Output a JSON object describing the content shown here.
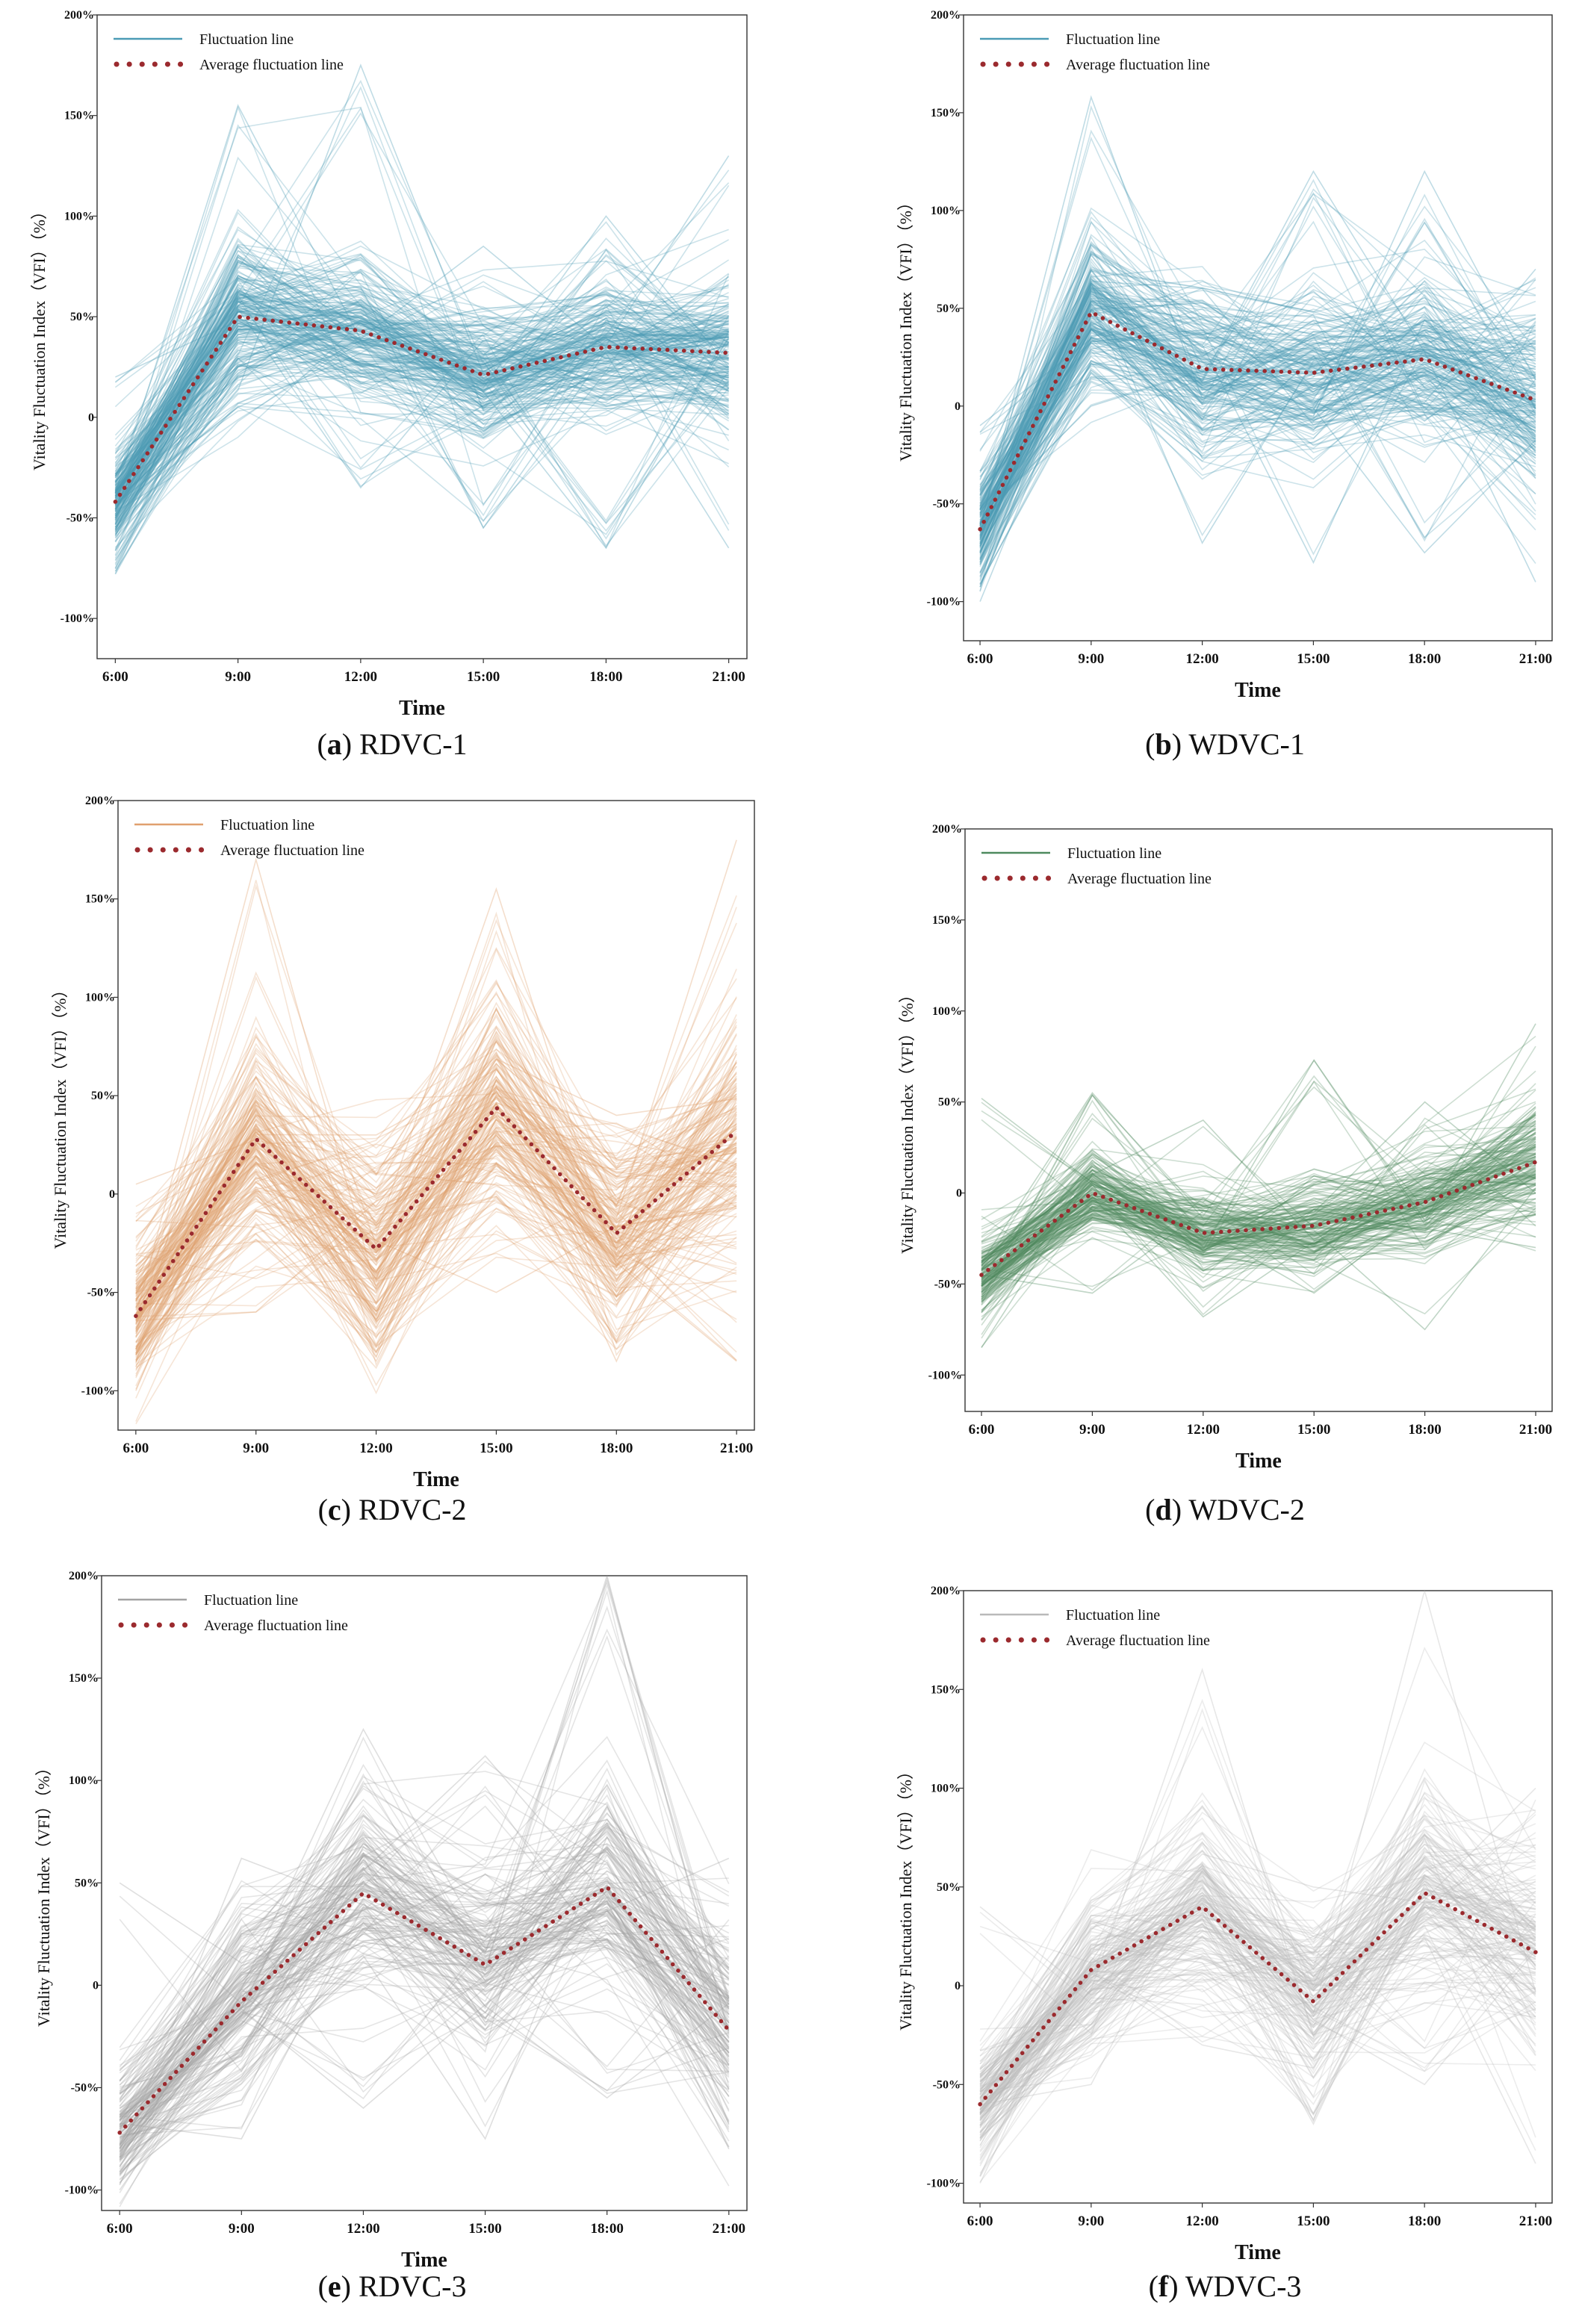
{
  "chart_data": [
    {
      "id": "a",
      "type": "line",
      "caption_letter": "a",
      "caption_name": "RDVC-1",
      "xlabel": "Time",
      "ylabel": "Vitality Fluctuation Index（VFI）（%）",
      "categories": [
        "6:00",
        "9:00",
        "12:00",
        "15:00",
        "18:00",
        "21:00"
      ],
      "yticks": [
        {
          "v": 200,
          "label": "200%"
        },
        {
          "v": 150,
          "label": "150%"
        },
        {
          "v": 100,
          "label": "100%"
        },
        {
          "v": 50,
          "label": "50%"
        },
        {
          "v": 0,
          "label": "0"
        },
        {
          "v": -50,
          "label": "-50%"
        },
        {
          "v": -100,
          "label": "-100%"
        }
      ],
      "ylim": [
        -120,
        200
      ],
      "legend": {
        "series_label": "Fluctuation    line",
        "average_label": "Average fluctuation line"
      },
      "series_color": "#4a9bb5",
      "average_color": "#9b2a2e",
      "average": [
        -42,
        50,
        43,
        21,
        35,
        32
      ],
      "spread": [
        13,
        22,
        20,
        18,
        18,
        20
      ],
      "outlier_max": [
        20,
        155,
        175,
        85,
        100,
        130
      ],
      "outlier_min": [
        -78,
        5,
        -35,
        -55,
        -65,
        -65
      ],
      "line_count": 220
    },
    {
      "id": "b",
      "type": "line",
      "caption_letter": "b",
      "caption_name": "WDVC-1",
      "xlabel": "Time",
      "ylabel": "Vitality Fluctuation Index（VFI）（%）",
      "categories": [
        "6:00",
        "9:00",
        "12:00",
        "15:00",
        "18:00",
        "21:00"
      ],
      "yticks": [
        {
          "v": 200,
          "label": "200%"
        },
        {
          "v": 150,
          "label": "150%"
        },
        {
          "v": 100,
          "label": "100%"
        },
        {
          "v": 50,
          "label": "50%"
        },
        {
          "v": 0,
          "label": "0"
        },
        {
          "v": -50,
          "label": "-50%"
        },
        {
          "v": -100,
          "label": "-100%"
        }
      ],
      "ylim": [
        -120,
        200
      ],
      "legend": {
        "series_label": "Fluctuation    line",
        "average_label": "Average fluctuation line"
      },
      "series_color": "#4a9bb5",
      "average_color": "#9b2a2e",
      "average": [
        -63,
        48,
        19,
        17,
        24,
        3
      ],
      "spread": [
        14,
        22,
        22,
        22,
        22,
        24
      ],
      "outlier_max": [
        -10,
        158,
        60,
        120,
        120,
        70
      ],
      "outlier_min": [
        -100,
        0,
        -70,
        -80,
        -75,
        -90
      ],
      "line_count": 200
    },
    {
      "id": "c",
      "type": "line",
      "caption_letter": "c",
      "caption_name": "RDVC-2",
      "xlabel": "Time",
      "ylabel": "Vitality Fluctuation Index（VFI）（%）",
      "categories": [
        "6:00",
        "9:00",
        "12:00",
        "15:00",
        "18:00",
        "21:00"
      ],
      "yticks": [
        {
          "v": 200,
          "label": "200%"
        },
        {
          "v": 150,
          "label": "150%"
        },
        {
          "v": 100,
          "label": "100%"
        },
        {
          "v": 50,
          "label": "50%"
        },
        {
          "v": 0,
          "label": "0"
        },
        {
          "v": -50,
          "label": "-50%"
        },
        {
          "v": -100,
          "label": "-100%"
        }
      ],
      "ylim": [
        -120,
        200
      ],
      "legend": {
        "series_label": "Fluctuation    line",
        "average_label": "Average fluctuation line"
      },
      "series_color": "#e0a06e",
      "average_color": "#9b2a2e",
      "average": [
        -62,
        28,
        -28,
        44,
        -20,
        32
      ],
      "spread": [
        20,
        32,
        28,
        30,
        25,
        35
      ],
      "outlier_max": [
        5,
        170,
        30,
        155,
        40,
        180
      ],
      "outlier_min": [
        -100,
        -60,
        -85,
        -50,
        -85,
        -85
      ],
      "line_count": 180
    },
    {
      "id": "d",
      "type": "line",
      "caption_letter": "d",
      "caption_name": "WDVC-2",
      "xlabel": "Time",
      "ylabel": "Vitality Fluctuation Index（VFI）（%）",
      "categories": [
        "6:00",
        "9:00",
        "12:00",
        "15:00",
        "18:00",
        "21:00"
      ],
      "yticks": [
        {
          "v": 200,
          "label": "200%"
        },
        {
          "v": 150,
          "label": "150%"
        },
        {
          "v": 100,
          "label": "100%"
        },
        {
          "v": 50,
          "label": "50%"
        },
        {
          "v": 0,
          "label": "0"
        },
        {
          "v": -50,
          "label": "-50%"
        },
        {
          "v": -100,
          "label": "-100%"
        }
      ],
      "ylim": [
        -120,
        200
      ],
      "legend": {
        "series_label": "Fluctuation    line",
        "average_label": "Average fluctuation line"
      },
      "series_color": "#4e8a5e",
      "average_color": "#9b2a2e",
      "average": [
        -45,
        0,
        -22,
        -18,
        -5,
        17
      ],
      "spread": [
        12,
        12,
        14,
        14,
        15,
        18
      ],
      "outlier_max": [
        52,
        55,
        40,
        73,
        50,
        93
      ],
      "outlier_min": [
        -85,
        -55,
        -68,
        -55,
        -75,
        -30
      ],
      "line_count": 170
    },
    {
      "id": "e",
      "type": "line",
      "caption_letter": "e",
      "caption_name": "RDVC-3",
      "xlabel": "Time",
      "ylabel": "Vitality Fluctuation Index（VFI）（%）",
      "categories": [
        "6:00",
        "9:00",
        "12:00",
        "15:00",
        "18:00",
        "21:00"
      ],
      "yticks": [
        {
          "v": 200,
          "label": "200%"
        },
        {
          "v": 150,
          "label": "150%"
        },
        {
          "v": 100,
          "label": "100%"
        },
        {
          "v": 50,
          "label": "50%"
        },
        {
          "v": 0,
          "label": "0"
        },
        {
          "v": -50,
          "label": "-50%"
        },
        {
          "v": -100,
          "label": "-100%"
        }
      ],
      "ylim": [
        -110,
        200
      ],
      "legend": {
        "series_label": "Fluctuation    line",
        "average_label": "Average fluctuation line"
      },
      "series_color": "#a3a3a3",
      "average_color": "#9b2a2e",
      "average": [
        -72,
        -8,
        45,
        10,
        48,
        -22
      ],
      "spread": [
        15,
        24,
        25,
        25,
        28,
        28
      ],
      "outlier_max": [
        50,
        62,
        125,
        112,
        200,
        62
      ],
      "outlier_min": [
        -100,
        -75,
        -60,
        -75,
        -55,
        -80
      ],
      "line_count": 160
    },
    {
      "id": "f",
      "type": "line",
      "caption_letter": "f",
      "caption_name": "WDVC-3",
      "xlabel": "Time",
      "ylabel": "Vitality Fluctuation Index（VFI）（%）",
      "categories": [
        "6:00",
        "9:00",
        "12:00",
        "15:00",
        "18:00",
        "21:00"
      ],
      "yticks": [
        {
          "v": 200,
          "label": "200%"
        },
        {
          "v": 150,
          "label": "150%"
        },
        {
          "v": 100,
          "label": "100%"
        },
        {
          "v": 50,
          "label": "50%"
        },
        {
          "v": 0,
          "label": "0"
        },
        {
          "v": -50,
          "label": "-50%"
        },
        {
          "v": -100,
          "label": "-100%"
        }
      ],
      "ylim": [
        -110,
        200
      ],
      "legend": {
        "series_label": "Fluctuation    line",
        "average_label": "Average fluctuation line"
      },
      "series_color": "#b9b9b9",
      "average_color": "#9b2a2e",
      "average": [
        -60,
        8,
        40,
        -8,
        47,
        17
      ],
      "spread": [
        15,
        20,
        25,
        22,
        28,
        25
      ],
      "outlier_max": [
        40,
        42,
        160,
        50,
        200,
        100
      ],
      "outlier_min": [
        -100,
        -50,
        -30,
        -70,
        -50,
        -90
      ],
      "line_count": 160
    }
  ]
}
